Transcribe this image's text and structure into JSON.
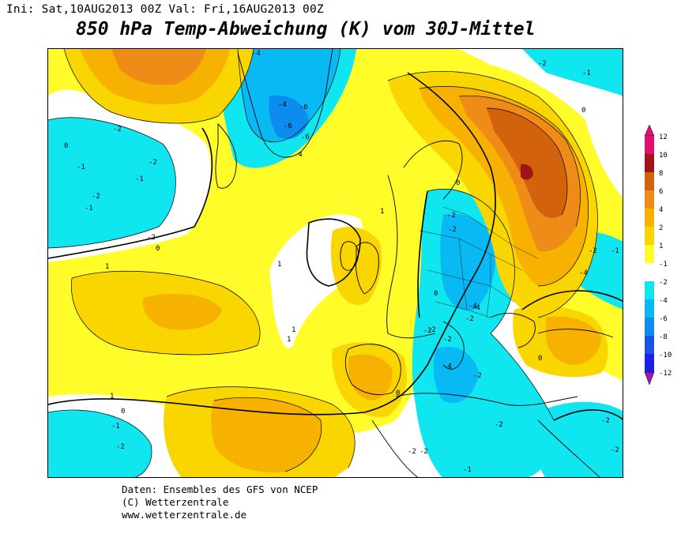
{
  "header": {
    "init_line": "Ini: Sat,10AUG2013 00Z Val: Fri,16AUG2013 00Z",
    "title": "850 hPa Temp-Abweichung (K) vom 30J-Mittel"
  },
  "footer": {
    "line1": "Daten: Ensembles des GFS von NCEP",
    "line2": "(C) Wetterzentrale",
    "line3": "www.wetterzentrale.de"
  },
  "legend": {
    "levels": [
      {
        "label": "12",
        "color": "#e0106e"
      },
      {
        "label": "10",
        "color": "#a2131a"
      },
      {
        "label": "8",
        "color": "#d2620c"
      },
      {
        "label": "6",
        "color": "#ef8c18"
      },
      {
        "label": "4",
        "color": "#f7b100"
      },
      {
        "label": "2",
        "color": "#fad600"
      },
      {
        "label": "1",
        "color": "#fffc2a"
      },
      {
        "label": "-1",
        "color": "#ffffff"
      },
      {
        "label": "-2",
        "color": "#10e6f0"
      },
      {
        "label": "-4",
        "color": "#08b9f4"
      },
      {
        "label": "-6",
        "color": "#0d8cf0"
      },
      {
        "label": "-8",
        "color": "#1a53e6"
      },
      {
        "label": "-10",
        "color": "#1e1fe6"
      },
      {
        "label": "-12",
        "color": "#c31ad0"
      }
    ],
    "below_color": "#9b1bb0"
  },
  "map_labels": [
    {
      "text": "-4"
    },
    {
      "text": "-2"
    },
    {
      "text": "-1"
    },
    {
      "text": "-4"
    },
    {
      "text": "-6"
    },
    {
      "text": "-6"
    },
    {
      "text": "-6"
    },
    {
      "text": "-4"
    },
    {
      "text": "-2"
    },
    {
      "text": "-1"
    },
    {
      "text": "-2"
    },
    {
      "text": "-1"
    },
    {
      "text": "-2"
    },
    {
      "text": "-2"
    },
    {
      "text": "-2"
    },
    {
      "text": "-2"
    },
    {
      "text": "-1"
    },
    {
      "text": "-2"
    },
    {
      "text": "-1"
    },
    {
      "text": "-4"
    },
    {
      "text": "-2"
    },
    {
      "text": "-2"
    },
    {
      "text": "-4"
    },
    {
      "text": "-4"
    },
    {
      "text": "-2"
    },
    {
      "text": "-2"
    },
    {
      "text": "-2"
    },
    {
      "text": "-4"
    },
    {
      "text": "-2"
    },
    {
      "text": "-2"
    },
    {
      "text": "-2"
    },
    {
      "text": "-2"
    },
    {
      "text": "-1"
    },
    {
      "text": "-2"
    },
    {
      "text": "-1"
    },
    {
      "text": "-2"
    },
    {
      "text": "1"
    },
    {
      "text": "1"
    },
    {
      "text": "1"
    },
    {
      "text": "1"
    },
    {
      "text": "1"
    },
    {
      "text": "1"
    },
    {
      "text": "0"
    },
    {
      "text": "0"
    },
    {
      "text": "0"
    },
    {
      "text": "0"
    },
    {
      "text": "0"
    },
    {
      "text": "0"
    },
    {
      "text": "0"
    },
    {
      "text": "0"
    }
  ]
}
